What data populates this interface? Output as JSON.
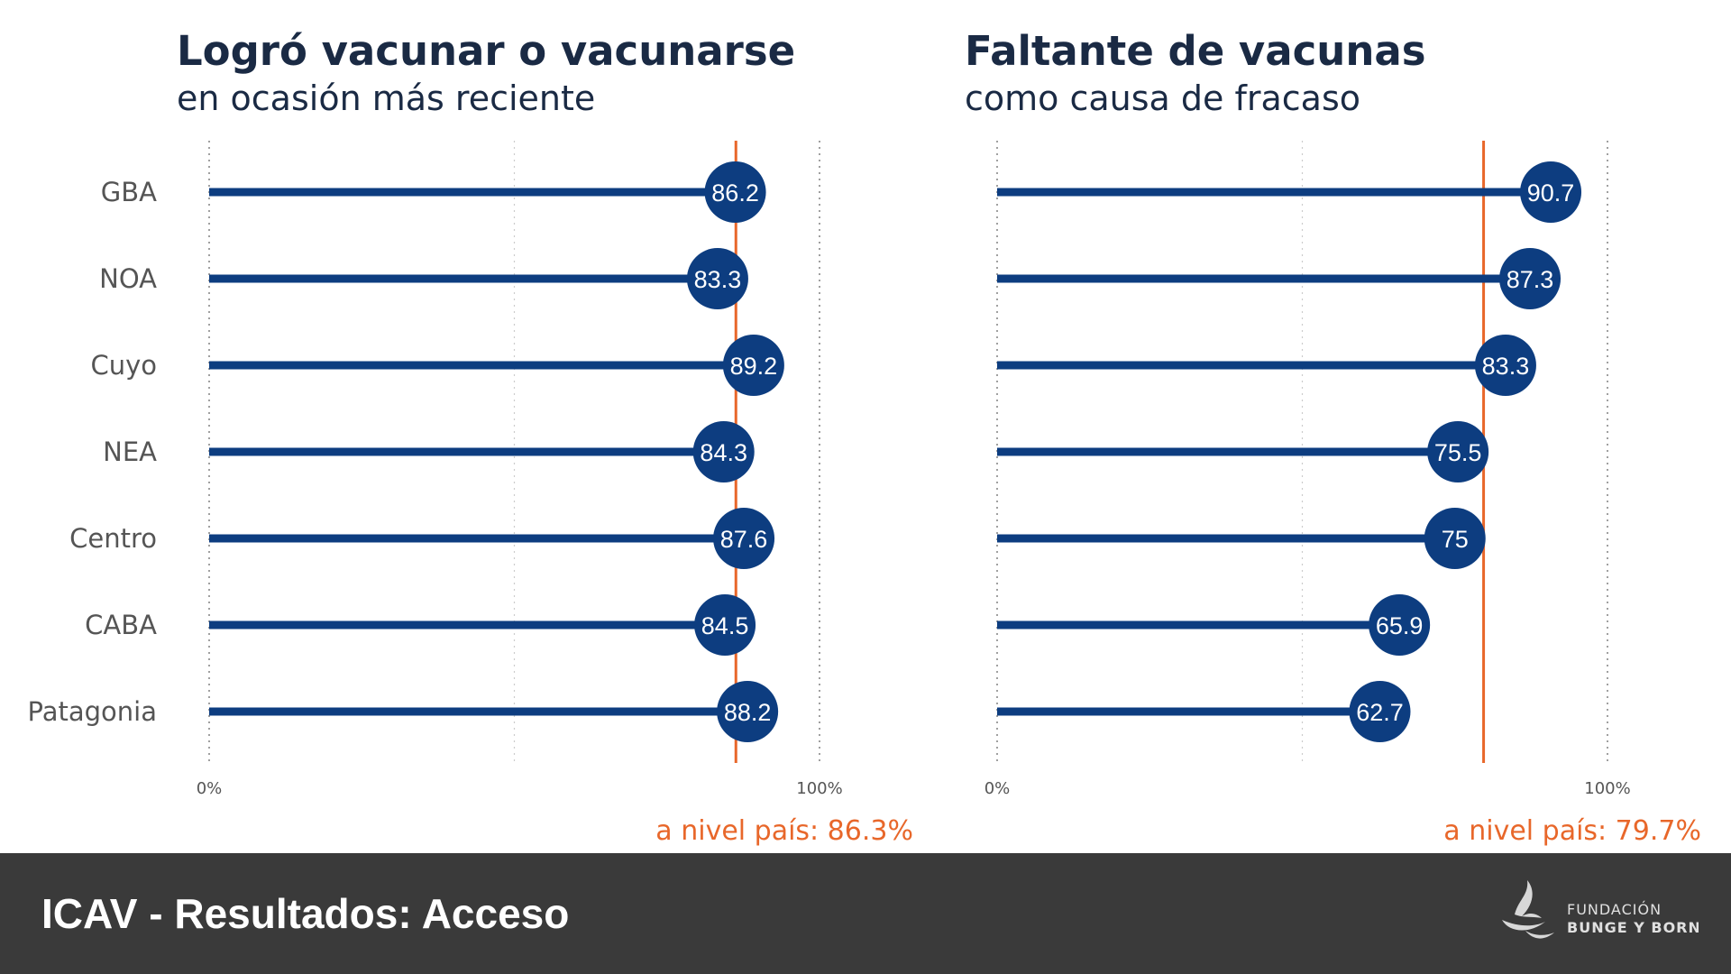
{
  "chart_data": [
    {
      "type": "lollipop",
      "title": "Logró vacunar o vacunarse",
      "subtitle": "en ocasión más reciente",
      "categories": [
        "GBA",
        "NOA",
        "Cuyo",
        "NEA",
        "Centro",
        "CABA",
        "Patagonia"
      ],
      "values": [
        86.2,
        83.3,
        89.2,
        84.3,
        87.6,
        84.5,
        88.2
      ],
      "value_labels": [
        "86.2",
        "83.3",
        "89.2",
        "84.3",
        "87.6",
        "84.5",
        "88.2"
      ],
      "xlim": [
        0,
        100
      ],
      "x_ticks": [
        "0%",
        "100%"
      ],
      "reference_value": 86.3,
      "reference_label": "a nivel país: 86.3%"
    },
    {
      "type": "lollipop",
      "title": "Faltante de vacunas",
      "subtitle": "como causa de fracaso",
      "categories": [
        "GBA",
        "NOA",
        "Cuyo",
        "NEA",
        "Centro",
        "CABA",
        "Patagonia"
      ],
      "values": [
        90.7,
        87.3,
        83.3,
        75.5,
        75,
        65.9,
        62.7
      ],
      "value_labels": [
        "90.7",
        "87.3",
        "83.3",
        "75.5",
        "75",
        "65.9",
        "62.7"
      ],
      "xlim": [
        0,
        100
      ],
      "x_ticks": [
        "0%",
        "100%"
      ],
      "reference_value": 79.7,
      "reference_label": "a nivel país: 79.7%"
    }
  ],
  "colors": {
    "series": "#0d3d80",
    "reference": "#e8672a",
    "footer_bg": "#3a3a3a"
  },
  "footer": {
    "title": "ICAV - Resultados: Acceso",
    "logo_line1": "FUNDACIÓN",
    "logo_line2": "BUNGE Y BORN"
  },
  "icons": {
    "logo": "fundacion-bunge-y-born-logo"
  }
}
